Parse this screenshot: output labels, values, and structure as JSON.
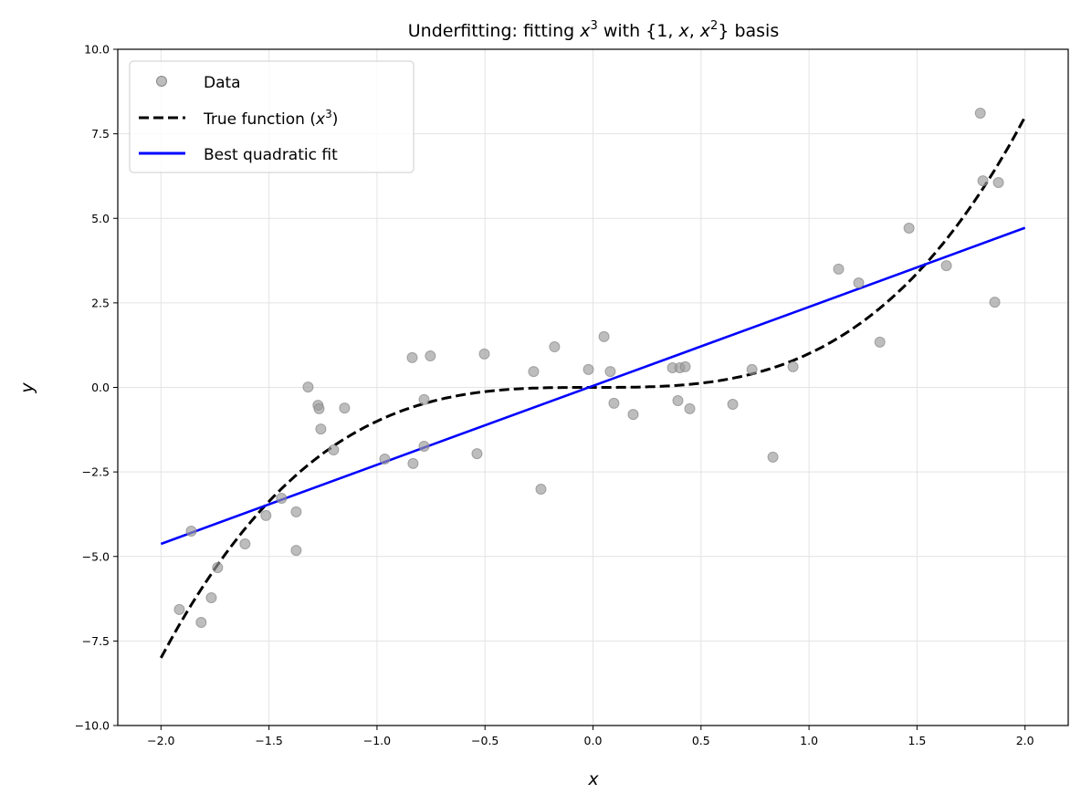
{
  "chart_data": {
    "type": "scatter",
    "title_parts": {
      "pre": "Underfitting: fitting ",
      "x": "x",
      "sup3": "3",
      "mid": " with {1, ",
      "x2": "x",
      "comma": ", ",
      "x3": "x",
      "sup2": "2",
      "post": "} basis"
    },
    "xlabel": "x",
    "ylabel": "y",
    "xlim": [
      -2.2,
      2.2
    ],
    "ylim": [
      -10,
      10
    ],
    "xticks": [
      "−2.0",
      "−1.5",
      "−1.0",
      "−0.5",
      "0.0",
      "0.5",
      "1.0",
      "1.5",
      "2.0"
    ],
    "xtick_values": [
      -2,
      -1.5,
      -1,
      -0.5,
      0,
      0.5,
      1,
      1.5,
      2
    ],
    "yticks": [
      "−10.0",
      "−7.5",
      "−5.0",
      "−2.5",
      "0.0",
      "2.5",
      "5.0",
      "7.5",
      "10.0"
    ],
    "ytick_values": [
      -10,
      -7.5,
      -5,
      -2.5,
      0,
      2.5,
      5,
      7.5,
      10
    ],
    "grid": true,
    "legend": {
      "placement": "upper-left",
      "entries": [
        {
          "label": "Data"
        },
        {
          "label_pre": "True function (",
          "label_var": "x",
          "label_sup": "3",
          "label_post": ")"
        },
        {
          "label": "Best quadratic fit"
        }
      ]
    },
    "colors": {
      "data": "#999999",
      "true": "#000000",
      "fit": "#0000ff"
    },
    "series": [
      {
        "name": "Data",
        "kind": "scatter",
        "points": [
          [
            -1.915,
            -6.57
          ],
          [
            -1.86,
            -4.25
          ],
          [
            -1.814,
            -6.95
          ],
          [
            -1.767,
            -6.22
          ],
          [
            -1.738,
            -5.33
          ],
          [
            -1.611,
            -4.63
          ],
          [
            -1.514,
            -3.79
          ],
          [
            -1.442,
            -3.28
          ],
          [
            -1.374,
            -3.68
          ],
          [
            -1.374,
            -4.82
          ],
          [
            -1.319,
            0.01
          ],
          [
            -1.273,
            -0.53
          ],
          [
            -1.268,
            -0.63
          ],
          [
            -1.26,
            -1.23
          ],
          [
            -1.201,
            -1.85
          ],
          [
            -1.15,
            -0.61
          ],
          [
            -0.964,
            -2.12
          ],
          [
            -0.837,
            0.88
          ],
          [
            -0.833,
            -2.25
          ],
          [
            -0.782,
            -0.36
          ],
          [
            -0.782,
            -1.74
          ],
          [
            -0.753,
            0.93
          ],
          [
            -0.537,
            -1.96
          ],
          [
            -0.503,
            0.99
          ],
          [
            -0.275,
            0.47
          ],
          [
            -0.241,
            -3.01
          ],
          [
            -0.178,
            1.2
          ],
          [
            -0.021,
            0.53
          ],
          [
            0.051,
            1.5
          ],
          [
            0.08,
            0.47
          ],
          [
            0.097,
            -0.47
          ],
          [
            0.186,
            -0.8
          ],
          [
            0.368,
            0.58
          ],
          [
            0.393,
            -0.39
          ],
          [
            0.402,
            0.58
          ],
          [
            0.427,
            0.61
          ],
          [
            0.448,
            -0.63
          ],
          [
            0.647,
            -0.5
          ],
          [
            0.736,
            0.53
          ],
          [
            0.833,
            -2.06
          ],
          [
            0.926,
            0.61
          ],
          [
            1.137,
            3.5
          ],
          [
            1.23,
            3.09
          ],
          [
            1.328,
            1.34
          ],
          [
            1.463,
            4.71
          ],
          [
            1.636,
            3.6
          ],
          [
            1.793,
            8.11
          ],
          [
            1.805,
            6.11
          ],
          [
            1.86,
            2.52
          ],
          [
            1.877,
            6.06
          ]
        ]
      },
      {
        "name": "True function (x^3)",
        "kind": "line",
        "style": "dashed",
        "x": [
          -2,
          -1.75,
          -1.5,
          -1.25,
          -1,
          -0.75,
          -0.5,
          -0.25,
          0,
          0.25,
          0.5,
          0.75,
          1,
          1.25,
          1.5,
          1.75,
          2
        ],
        "y": [
          -8,
          -5.36,
          -3.375,
          -1.953,
          -1,
          -0.422,
          -0.125,
          -0.016,
          0,
          0.016,
          0.125,
          0.422,
          1,
          1.953,
          3.375,
          5.36,
          8
        ]
      },
      {
        "name": "Best quadratic fit",
        "kind": "line",
        "style": "solid",
        "x": [
          -2,
          -1,
          0,
          1,
          2
        ],
        "y": [
          -4.63,
          -2.29,
          0.045,
          2.38,
          4.72
        ]
      }
    ]
  }
}
